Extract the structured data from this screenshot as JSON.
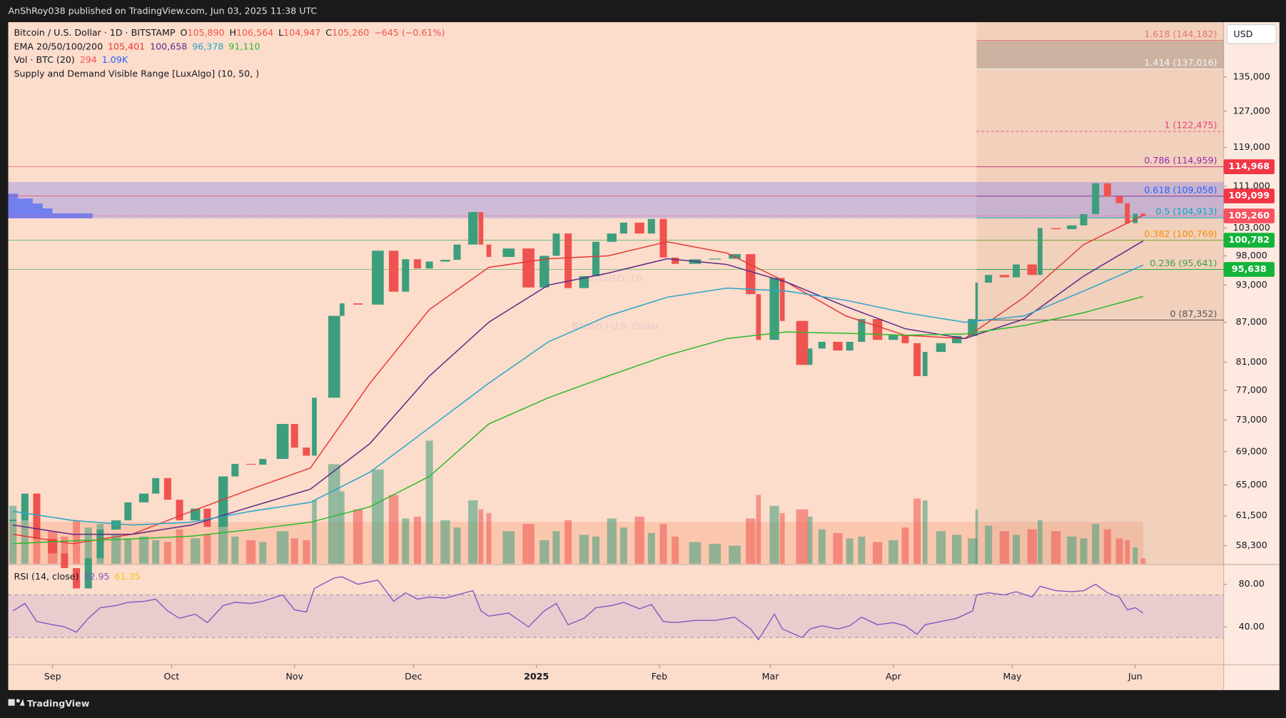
{
  "header": "AnShRoy038 published on TradingView.com, Jun 03, 2025 11:38 UTC",
  "footer": "TradingView",
  "currency": "USD",
  "chart_data": {
    "type": "candlestick",
    "watermark": "BTCUSD, 1D",
    "watermark_subtitle": "Bitcoin / U.S. Dollar",
    "legend": {
      "symbol": "Bitcoin / U.S. Dollar · 1D · BITSTAMP",
      "ohlc": [
        {
          "label": "O",
          "value": "105,890"
        },
        {
          "label": "H",
          "value": "106,564"
        },
        {
          "label": "L",
          "value": "104,947"
        },
        {
          "label": "C",
          "value": "105,260"
        }
      ],
      "change": "−645 (−0.61%)",
      "ema_title": "EMA 20/50/100/200",
      "volume_title": "Vol · BTC (20)",
      "volume_values": [
        {
          "text": "294",
          "color": "#f7525f"
        },
        {
          "text": "1.09K",
          "color": "#2962ff"
        }
      ],
      "indicator": "Supply and Demand Visible Range [LuxAlgo] (10, 50, )",
      "rsi_title": "RSI (14, close)",
      "rsi_values": [
        {
          "text": "52.95",
          "color": "#7e57c2"
        },
        {
          "text": "61.35",
          "color": "#f5c518"
        }
      ]
    },
    "up_color": "#3c9e7c",
    "down_color": "#ef5350",
    "log_scale": true,
    "xlim": [
      -11.2,
      295.3
    ],
    "xticks": [
      {
        "value": 0,
        "label": "Sep"
      },
      {
        "value": 30,
        "label": "Oct"
      },
      {
        "value": 61,
        "label": "Nov"
      },
      {
        "value": 91,
        "label": "Dec"
      },
      {
        "value": 122,
        "label": "2025"
      },
      {
        "value": 153,
        "label": "Feb"
      },
      {
        "value": 181,
        "label": "Mar"
      },
      {
        "value": 212,
        "label": "Apr"
      },
      {
        "value": 242,
        "label": "May"
      },
      {
        "value": 273,
        "label": "Jun"
      }
    ],
    "ylim": [
      56440,
      148970
    ],
    "yticks": [
      {
        "value": 135000,
        "label": "135,000"
      },
      {
        "value": 127000,
        "label": "127,000"
      },
      {
        "value": 119000,
        "label": "119,000"
      },
      {
        "value": 111000,
        "label": "111,000"
      },
      {
        "value": 103000,
        "label": "103,000"
      },
      {
        "value": 98000,
        "label": "98,000"
      },
      {
        "value": 93000,
        "label": "93,000"
      },
      {
        "value": 87000,
        "label": "87,000"
      },
      {
        "value": 81000,
        "label": "81,000"
      },
      {
        "value": 77000,
        "label": "77,000"
      },
      {
        "value": 73000,
        "label": "73,000"
      },
      {
        "value": 69000,
        "label": "69,000"
      },
      {
        "value": 65000,
        "label": "65,000"
      },
      {
        "value": 61500,
        "label": "61,500"
      },
      {
        "value": 58300,
        "label": "58,300"
      }
    ],
    "x": [
      -10,
      -7,
      -4,
      0,
      3,
      6,
      9,
      12,
      16,
      19,
      23,
      26,
      29,
      32,
      36,
      39,
      43,
      46,
      50,
      53,
      58,
      61,
      64,
      66,
      71,
      73,
      77,
      82,
      86,
      89,
      92,
      95,
      99,
      102,
      106,
      108,
      110,
      115,
      120,
      124,
      127,
      130,
      134,
      137,
      141,
      144,
      148,
      151,
      154,
      157,
      162,
      167,
      172,
      176,
      178,
      182,
      184,
      189,
      191,
      194,
      198,
      201,
      204,
      208,
      212,
      215,
      218,
      220,
      224,
      228,
      232,
      233,
      236,
      240,
      243,
      247,
      249,
      253,
      257,
      260,
      263,
      266,
      269,
      271,
      273,
      275
    ],
    "close": [
      61000,
      64000,
      59000,
      57500,
      56000,
      54000,
      57000,
      60000,
      61000,
      63000,
      64000,
      65800,
      63300,
      61000,
      62300,
      60300,
      66000,
      67500,
      67400,
      68100,
      72500,
      69500,
      68500,
      76000,
      88000,
      90000,
      89800,
      98900,
      91900,
      97400,
      95800,
      97000,
      97300,
      100000,
      106000,
      100000,
      97800,
      99300,
      92600,
      98000,
      102000,
      92500,
      94500,
      100500,
      102000,
      104000,
      102000,
      104700,
      97700,
      96600,
      97400,
      97500,
      98300,
      91500,
      84300,
      94200,
      87200,
      80600,
      83000,
      84000,
      82700,
      84000,
      87500,
      84300,
      85100,
      83800,
      79000,
      82500,
      83800,
      84900,
      87500,
      93400,
      94700,
      94300,
      96500,
      94700,
      103000,
      102800,
      103500,
      105600,
      111600,
      109000,
      107700,
      103900,
      105700,
      105260
    ],
    "volume": [
      3200,
      2500,
      2800,
      1800,
      1500,
      2400,
      2000,
      2200,
      1600,
      1400,
      1500,
      1300,
      1200,
      1900,
      1400,
      1600,
      2200,
      1500,
      1300,
      1200,
      1800,
      1400,
      1300,
      3500,
      5500,
      4000,
      3000,
      5200,
      3800,
      2500,
      2600,
      6800,
      2400,
      2000,
      3500,
      3000,
      2800,
      1800,
      2200,
      1300,
      1800,
      2400,
      1600,
      1500,
      2500,
      2000,
      2600,
      1700,
      2200,
      1500,
      1200,
      1100,
      1000,
      2500,
      3800,
      3200,
      2800,
      3000,
      2600,
      1900,
      1700,
      1400,
      1500,
      1200,
      1300,
      2000,
      3600,
      3500,
      1800,
      1600,
      1400,
      3000,
      2100,
      1800,
      1600,
      1900,
      2400,
      1800,
      1500,
      1400,
      2200,
      1900,
      1400,
      1300,
      900,
      294
    ],
    "rsi": [
      55,
      62,
      45,
      42,
      40,
      35,
      48,
      58,
      60,
      63,
      64,
      66,
      55,
      48,
      52,
      44,
      60,
      63,
      62,
      64,
      70,
      56,
      54,
      76,
      86,
      87,
      80,
      84,
      64,
      72,
      66,
      68,
      67,
      70,
      74,
      55,
      50,
      53,
      40,
      55,
      62,
      42,
      48,
      58,
      60,
      63,
      57,
      61,
      45,
      44,
      46,
      46,
      49,
      38,
      28,
      52,
      38,
      30,
      38,
      41,
      38,
      41,
      49,
      42,
      44,
      41,
      33,
      42,
      45,
      48,
      55,
      70,
      72,
      70,
      73,
      68,
      78,
      74,
      73,
      74,
      80,
      72,
      68,
      56,
      58,
      52.95
    ],
    "rsi_ylim": [
      6,
      97
    ],
    "rsi_yticks": [
      {
        "value": 80,
        "label": "80.00"
      },
      {
        "value": 40,
        "label": "40.00"
      }
    ],
    "rsi_band": [
      30,
      70
    ],
    "ema_x": [
      -10,
      5,
      20,
      35,
      50,
      65,
      80,
      95,
      110,
      125,
      140,
      155,
      170,
      185,
      200,
      215,
      230,
      245,
      260,
      275
    ],
    "ema_series": [
      {
        "name": "EMA 20",
        "color": "#e53935",
        "legend_value": "105,401",
        "values": [
          59500,
          58500,
          59500,
          62000,
          64500,
          67000,
          78000,
          89000,
          96000,
          97500,
          98000,
          100500,
          98500,
          93500,
          88000,
          85000,
          84500,
          91000,
          100000,
          105401
        ]
      },
      {
        "name": "EMA 50",
        "color": "#5b2a86",
        "legend_value": "100,658",
        "values": [
          60500,
          59500,
          59500,
          60500,
          62500,
          64500,
          70000,
          79000,
          87000,
          93000,
          95000,
          97500,
          96500,
          93500,
          89500,
          86000,
          84500,
          87500,
          94500,
          100658
        ]
      },
      {
        "name": "EMA 100",
        "color": "#26a6c9",
        "legend_value": "96,378",
        "values": [
          62000,
          61000,
          60500,
          60800,
          62000,
          63000,
          66500,
          72000,
          78000,
          84000,
          88000,
          91000,
          92500,
          92000,
          90500,
          88500,
          87000,
          88000,
          92000,
          96378
        ]
      },
      {
        "name": "EMA 200",
        "color": "#2bb82b",
        "legend_value": "91,110",
        "values": [
          58500,
          58800,
          59000,
          59300,
          60000,
          60800,
          62500,
          66000,
          72500,
          76000,
          79000,
          82000,
          84500,
          85500,
          85300,
          85000,
          85200,
          86500,
          88500,
          91110
        ]
      }
    ],
    "supply_zone": [
      104830,
      111850
    ],
    "fib_anchor_x": 233,
    "fib_levels": [
      {
        "value": 144182,
        "label": "1.618 (144,182)",
        "color": "#e57373"
      },
      {
        "value": 137016,
        "label": "1.414 (137,016)",
        "color": "#f5f5f5"
      },
      {
        "value": 122475,
        "label": "1 (122,475)",
        "color": "#ec407a"
      },
      {
        "value": 114959,
        "label": "0.786 (114,959)",
        "color": "#9c27b0"
      },
      {
        "value": 109058,
        "label": "0.618 (109,058)",
        "color": "#2962ff"
      },
      {
        "value": 104913,
        "label": "0.5 (104,913)",
        "color": "#00acc1"
      },
      {
        "value": 100769,
        "label": "0.382 (100,769)",
        "color": "#fb8c00"
      },
      {
        "value": 95641,
        "label": "0.236 (95,641)",
        "color": "#43a047"
      },
      {
        "value": 87352,
        "label": "0 (87,352)",
        "color": "#555555"
      }
    ],
    "price_badges": [
      {
        "value": 114968,
        "label": "114,968",
        "color": "#f23645"
      },
      {
        "value": 109099,
        "label": "109,099",
        "color": "#f23645"
      },
      {
        "value": 105260,
        "label": "105,260",
        "color": "#f7525f"
      },
      {
        "value": 100782,
        "label": "100,782",
        "color": "#14b33a"
      },
      {
        "value": 95638,
        "label": "95,638",
        "color": "#14b33a"
      }
    ]
  }
}
